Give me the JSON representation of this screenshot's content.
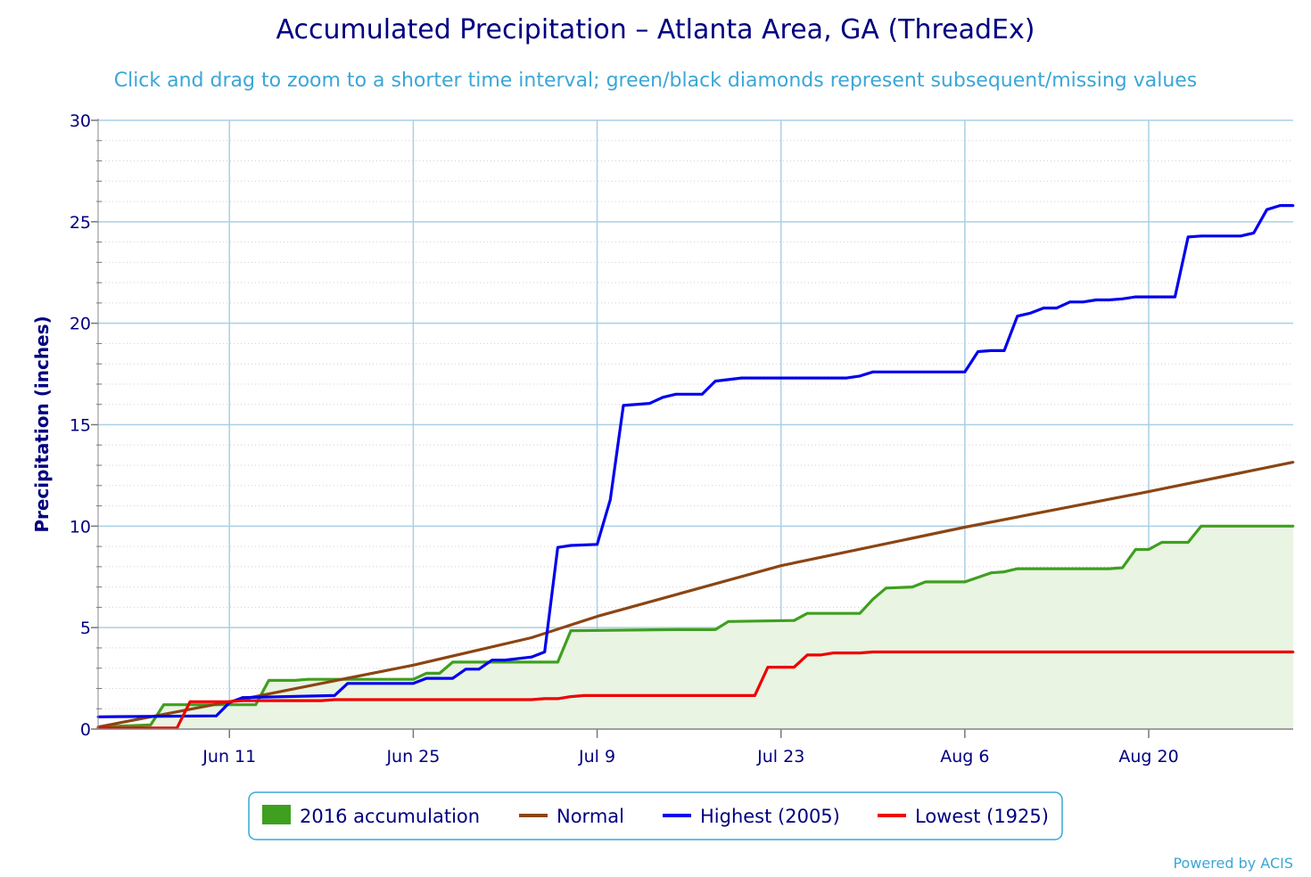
{
  "chart_data": {
    "type": "line",
    "title": "Accumulated Precipitation – Atlanta Area, GA (ThreadEx)",
    "subtitle": "Click and drag to zoom to a shorter time interval; green/black diamonds represent subsequent/missing values",
    "ylabel": "Precipitation (inches)",
    "xlabel": "",
    "ylim": [
      0,
      30
    ],
    "y_ticks": [
      0,
      5,
      10,
      15,
      20,
      25,
      30
    ],
    "x_range": [
      "2016-06-01",
      "2016-08-31"
    ],
    "x_ticks": [
      {
        "date": "2016-06-11",
        "label": "Jun 11"
      },
      {
        "date": "2016-06-25",
        "label": "Jun 25"
      },
      {
        "date": "2016-07-09",
        "label": "Jul 9"
      },
      {
        "date": "2016-07-23",
        "label": "Jul 23"
      },
      {
        "date": "2016-08-06",
        "label": "Aug 6"
      },
      {
        "date": "2016-08-20",
        "label": "Aug 20"
      }
    ],
    "grid": true,
    "legend_position": "bottom",
    "series": [
      {
        "name": "2016 accumulation",
        "style": "area",
        "color": "#3f9f1f",
        "fill": "#e9f4e2",
        "points": [
          [
            "2016-06-01",
            0.1
          ],
          [
            "2016-06-05",
            0.2
          ],
          [
            "2016-06-06",
            1.2
          ],
          [
            "2016-06-10",
            1.2
          ],
          [
            "2016-06-11",
            1.2
          ],
          [
            "2016-06-13",
            1.2
          ],
          [
            "2016-06-14",
            2.4
          ],
          [
            "2016-06-16",
            2.4
          ],
          [
            "2016-06-17",
            2.45
          ],
          [
            "2016-06-25",
            2.45
          ],
          [
            "2016-06-26",
            2.75
          ],
          [
            "2016-06-27",
            2.75
          ],
          [
            "2016-06-28",
            3.3
          ],
          [
            "2016-07-06",
            3.3
          ],
          [
            "2016-07-07",
            4.85
          ],
          [
            "2016-07-15",
            4.9
          ],
          [
            "2016-07-18",
            4.9
          ],
          [
            "2016-07-19",
            5.3
          ],
          [
            "2016-07-24",
            5.35
          ],
          [
            "2016-07-25",
            5.7
          ],
          [
            "2016-07-29",
            5.7
          ],
          [
            "2016-07-30",
            6.4
          ],
          [
            "2016-07-31",
            6.95
          ],
          [
            "2016-08-02",
            7.0
          ],
          [
            "2016-08-03",
            7.25
          ],
          [
            "2016-08-06",
            7.25
          ],
          [
            "2016-08-08",
            7.7
          ],
          [
            "2016-08-09",
            7.75
          ],
          [
            "2016-08-10",
            7.9
          ],
          [
            "2016-08-17",
            7.9
          ],
          [
            "2016-08-18",
            7.95
          ],
          [
            "2016-08-19",
            8.85
          ],
          [
            "2016-08-20",
            8.85
          ],
          [
            "2016-08-21",
            9.2
          ],
          [
            "2016-08-23",
            9.2
          ],
          [
            "2016-08-24",
            10.0
          ],
          [
            "2016-08-31",
            10.0
          ]
        ]
      },
      {
        "name": "Normal",
        "style": "line",
        "color": "#8b4513",
        "points": [
          [
            "2016-06-01",
            0.1
          ],
          [
            "2016-06-11",
            1.35
          ],
          [
            "2016-06-25",
            3.15
          ],
          [
            "2016-07-04",
            4.5
          ],
          [
            "2016-07-09",
            5.55
          ],
          [
            "2016-07-23",
            8.05
          ],
          [
            "2016-08-06",
            9.95
          ],
          [
            "2016-08-20",
            11.7
          ],
          [
            "2016-08-31",
            13.15
          ]
        ]
      },
      {
        "name": "Highest (2005)",
        "style": "line",
        "color": "#0000ee",
        "points": [
          [
            "2016-06-01",
            0.6
          ],
          [
            "2016-06-10",
            0.65
          ],
          [
            "2016-06-11",
            1.3
          ],
          [
            "2016-06-12",
            1.55
          ],
          [
            "2016-06-19",
            1.65
          ],
          [
            "2016-06-20",
            2.25
          ],
          [
            "2016-06-25",
            2.25
          ],
          [
            "2016-06-26",
            2.5
          ],
          [
            "2016-06-28",
            2.5
          ],
          [
            "2016-06-29",
            2.95
          ],
          [
            "2016-06-30",
            2.95
          ],
          [
            "2016-07-01",
            3.4
          ],
          [
            "2016-07-02",
            3.4
          ],
          [
            "2016-07-04",
            3.55
          ],
          [
            "2016-07-05",
            3.8
          ],
          [
            "2016-07-06",
            8.95
          ],
          [
            "2016-07-07",
            9.05
          ],
          [
            "2016-07-09",
            9.1
          ],
          [
            "2016-07-10",
            11.3
          ],
          [
            "2016-07-11",
            15.95
          ],
          [
            "2016-07-13",
            16.05
          ],
          [
            "2016-07-14",
            16.35
          ],
          [
            "2016-07-15",
            16.5
          ],
          [
            "2016-07-17",
            16.5
          ],
          [
            "2016-07-18",
            17.15
          ],
          [
            "2016-07-20",
            17.3
          ],
          [
            "2016-07-28",
            17.3
          ],
          [
            "2016-07-29",
            17.4
          ],
          [
            "2016-07-30",
            17.6
          ],
          [
            "2016-08-06",
            17.6
          ],
          [
            "2016-08-07",
            18.6
          ],
          [
            "2016-08-08",
            18.65
          ],
          [
            "2016-08-09",
            18.65
          ],
          [
            "2016-08-10",
            20.35
          ],
          [
            "2016-08-11",
            20.5
          ],
          [
            "2016-08-12",
            20.75
          ],
          [
            "2016-08-13",
            20.75
          ],
          [
            "2016-08-14",
            21.05
          ],
          [
            "2016-08-15",
            21.05
          ],
          [
            "2016-08-16",
            21.15
          ],
          [
            "2016-08-17",
            21.15
          ],
          [
            "2016-08-18",
            21.2
          ],
          [
            "2016-08-19",
            21.3
          ],
          [
            "2016-08-22",
            21.3
          ],
          [
            "2016-08-23",
            24.25
          ],
          [
            "2016-08-24",
            24.3
          ],
          [
            "2016-08-27",
            24.3
          ],
          [
            "2016-08-28",
            24.45
          ],
          [
            "2016-08-29",
            25.6
          ],
          [
            "2016-08-30",
            25.8
          ],
          [
            "2016-08-31",
            25.8
          ]
        ]
      },
      {
        "name": "Lowest (1925)",
        "style": "line",
        "color": "#ee0000",
        "points": [
          [
            "2016-06-01",
            0.05
          ],
          [
            "2016-06-07",
            0.05
          ],
          [
            "2016-06-08",
            1.35
          ],
          [
            "2016-06-11",
            1.35
          ],
          [
            "2016-06-12",
            1.4
          ],
          [
            "2016-06-18",
            1.4
          ],
          [
            "2016-06-19",
            1.45
          ],
          [
            "2016-07-04",
            1.45
          ],
          [
            "2016-07-05",
            1.5
          ],
          [
            "2016-07-06",
            1.5
          ],
          [
            "2016-07-07",
            1.6
          ],
          [
            "2016-07-08",
            1.65
          ],
          [
            "2016-07-21",
            1.65
          ],
          [
            "2016-07-22",
            3.05
          ],
          [
            "2016-07-24",
            3.05
          ],
          [
            "2016-07-25",
            3.65
          ],
          [
            "2016-07-26",
            3.65
          ],
          [
            "2016-07-27",
            3.75
          ],
          [
            "2016-07-29",
            3.75
          ],
          [
            "2016-07-30",
            3.8
          ],
          [
            "2016-08-31",
            3.8
          ]
        ]
      }
    ]
  },
  "credit": "Powered by ACIS",
  "colors": {
    "title": "#000080",
    "subtitle": "#3aa6d8",
    "grid_major": "#aacfe6",
    "grid_minor": "#d0d0d0",
    "legend_border": "#3aa6d8"
  }
}
